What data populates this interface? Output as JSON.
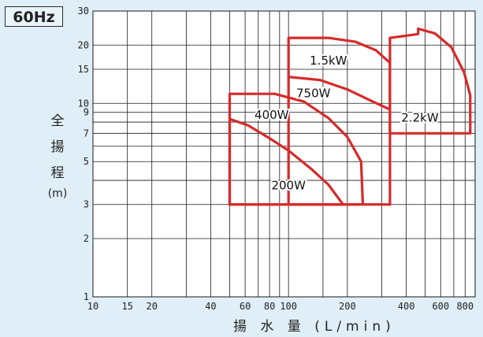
{
  "badge": "60Hz",
  "ylabel_chars": [
    "全",
    "揚",
    "程"
  ],
  "ylabel_unit": "(m)",
  "xlabel": "揚 水 量 (L/min)",
  "chart_data": {
    "type": "line",
    "title": "",
    "xlabel": "揚 水 量 (L/min)",
    "ylabel": "全揚程 (m)",
    "xscale": "log",
    "yscale": "log",
    "xlim": [
      10,
      900
    ],
    "ylim": [
      1,
      30
    ],
    "x_ticks": [
      10,
      15,
      20,
      40,
      60,
      80,
      100,
      200,
      400,
      600,
      800
    ],
    "y_ticks": [
      1,
      2,
      3,
      5,
      7,
      9,
      10,
      15,
      20,
      30
    ],
    "grid": true,
    "series": [
      {
        "name": "200W",
        "points": [
          [
            50,
            3.0
          ],
          [
            50,
            8.3
          ],
          [
            62,
            7.7
          ],
          [
            80,
            6.6
          ],
          [
            100,
            5.7
          ],
          [
            130,
            4.6
          ],
          [
            160,
            3.8
          ],
          [
            190,
            3.0
          ],
          [
            50,
            3.0
          ]
        ]
      },
      {
        "name": "400W",
        "points": [
          [
            50,
            3.0
          ],
          [
            50,
            11.2
          ],
          [
            85,
            11.2
          ],
          [
            120,
            10.2
          ],
          [
            160,
            8.4
          ],
          [
            200,
            6.7
          ],
          [
            235,
            5.0
          ],
          [
            240,
            3.0
          ],
          [
            50,
            3.0
          ]
        ]
      },
      {
        "name": "750W",
        "points": [
          [
            100,
            3.0
          ],
          [
            100,
            13.7
          ],
          [
            145,
            13.2
          ],
          [
            200,
            11.8
          ],
          [
            270,
            10.2
          ],
          [
            330,
            9.3
          ],
          [
            330,
            3.0
          ],
          [
            100,
            3.0
          ]
        ]
      },
      {
        "name": "1.5kW",
        "points": [
          [
            100,
            13.7
          ],
          [
            100,
            21.8
          ],
          [
            160,
            21.8
          ],
          [
            220,
            20.8
          ],
          [
            280,
            18.8
          ],
          [
            330,
            16.2
          ],
          [
            330,
            9.3
          ]
        ]
      },
      {
        "name": "2.2kW",
        "points": [
          [
            330,
            7.0
          ],
          [
            330,
            21.8
          ],
          [
            460,
            22.8
          ],
          [
            460,
            24.3
          ],
          [
            560,
            23.0
          ],
          [
            680,
            19.5
          ],
          [
            790,
            14.5
          ],
          [
            850,
            11.0
          ],
          [
            850,
            7.0
          ],
          [
            330,
            7.0
          ]
        ]
      }
    ],
    "series_labels": [
      {
        "name": "200W",
        "x": 100,
        "y": 3.8
      },
      {
        "name": "400W",
        "x": 82,
        "y": 8.8
      },
      {
        "name": "750W",
        "x": 134,
        "y": 11.4
      },
      {
        "name": "1.5kW",
        "x": 160,
        "y": 16.8
      },
      {
        "name": "2.2kW",
        "x": 470,
        "y": 8.5
      }
    ],
    "line_color": "#d62a2a"
  }
}
